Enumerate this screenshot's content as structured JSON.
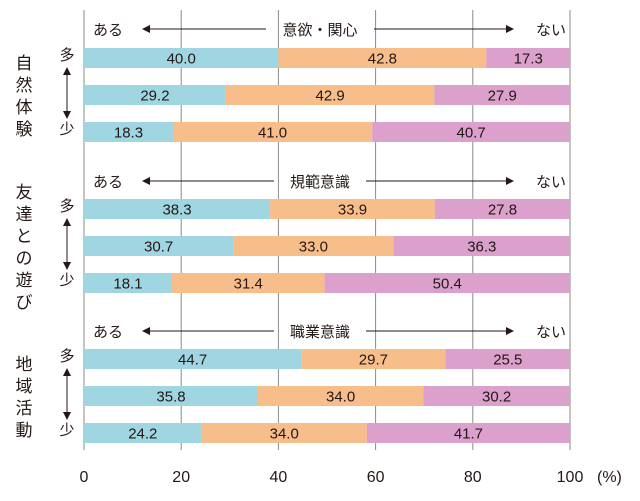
{
  "chart_data": {
    "type": "bar",
    "orientation": "horizontal",
    "stacked": true,
    "xlim": [
      0,
      100
    ],
    "x_ticks": [
      "0",
      "20",
      "40",
      "60",
      "80",
      "100"
    ],
    "x_unit": "(%)",
    "colors": [
      "#9fd6e2",
      "#f7be8c",
      "#dba0cc"
    ],
    "groups": [
      {
        "category": "自然体験",
        "scale_label": "意欲・関心",
        "left_label": "ある",
        "right_label": "ない",
        "top_label": "多",
        "bottom_label": "少",
        "rows": [
          [
            40.0,
            42.8,
            17.3
          ],
          [
            29.2,
            42.9,
            27.9
          ],
          [
            18.3,
            41.0,
            40.7
          ]
        ]
      },
      {
        "category": "友達との遊び",
        "scale_label": "規範意識",
        "left_label": "ある",
        "right_label": "ない",
        "top_label": "多",
        "bottom_label": "少",
        "rows": [
          [
            38.3,
            33.9,
            27.8
          ],
          [
            30.7,
            33.0,
            36.3
          ],
          [
            18.1,
            31.4,
            50.4
          ]
        ]
      },
      {
        "category": "地域活動",
        "scale_label": "職業意識",
        "left_label": "ある",
        "right_label": "ない",
        "top_label": "多",
        "bottom_label": "少",
        "rows": [
          [
            44.7,
            29.7,
            25.5
          ],
          [
            35.8,
            34.0,
            30.2
          ],
          [
            24.2,
            34.0,
            41.7
          ]
        ]
      }
    ]
  }
}
